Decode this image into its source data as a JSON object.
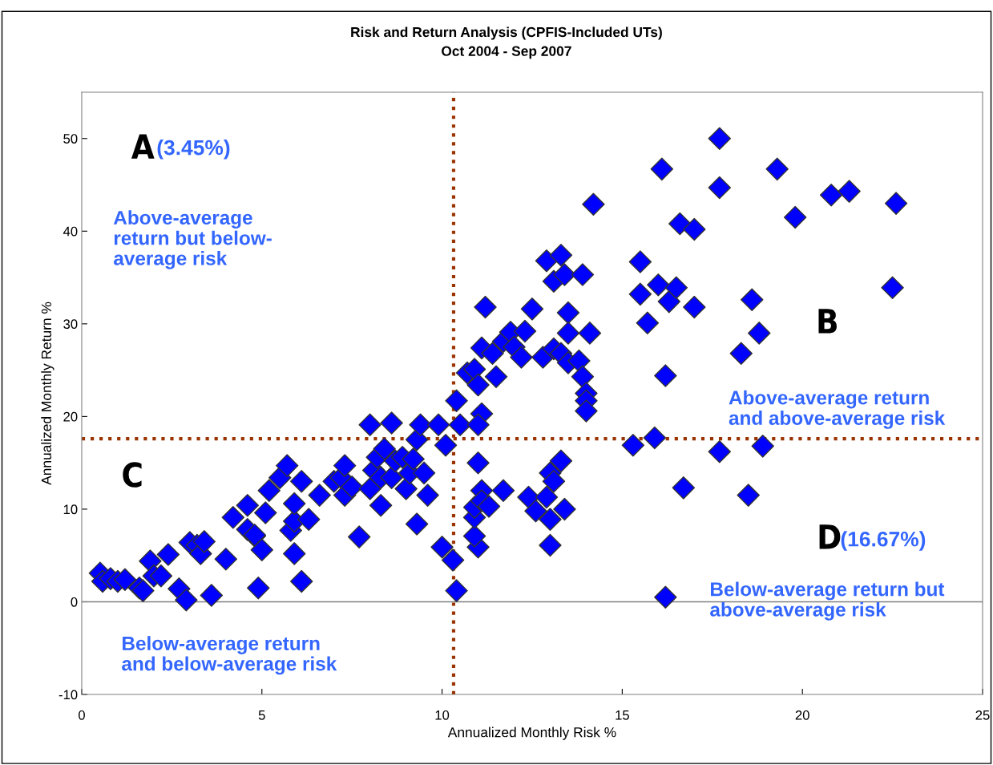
{
  "chart_data": {
    "type": "scatter",
    "title": "Risk and Return Analysis (CPFIS-Included UTs)\nOct 2004 - Sep 2007",
    "xlabel": "Annualized Monthly Risk %",
    "ylabel": "Annualized Monthly Return %",
    "xlim": [
      0,
      25
    ],
    "xticks": [
      0,
      5,
      10,
      15,
      20,
      25
    ],
    "ylim": [
      -10,
      55
    ],
    "yticks": [
      -10,
      0,
      10,
      20,
      30,
      40,
      50
    ],
    "grid": false,
    "marker": "diamond",
    "legend": false,
    "ref_lines": [
      {
        "axis": "x",
        "value": 10.32,
        "color": "#993300",
        "line_style": "dotted"
      },
      {
        "axis": "y",
        "value": 17.6,
        "color": "#993300",
        "line_style": "dotted"
      },
      {
        "axis": "y",
        "value": 0,
        "color": "#808080",
        "line_style": "solid"
      }
    ],
    "annotations": [
      "A",
      "(3.45%)",
      "Above-average\nreturn but below-\naverage risk",
      "B",
      "Above-average return\nand above-average risk",
      "C",
      "Below-average return\nand below-average risk",
      "D",
      "(16.67%)",
      "Below-average return but\nabove-average risk"
    ],
    "series": [
      {
        "color": "#0000ff",
        "x": [
          0.51,
          0.58,
          0.8,
          1.0,
          1.2,
          1.6,
          1.7,
          1.9,
          2.0,
          2.2,
          2.4,
          2.7,
          2.9,
          3.0,
          3.2,
          3.3,
          3.4,
          3.6,
          4.0,
          4.2,
          4.6,
          4.6,
          4.8,
          4.8,
          4.9,
          5.0,
          5.1,
          5.2,
          5.5,
          5.7,
          5.8,
          5.9,
          5.9,
          5.9,
          6.1,
          6.1,
          6.3,
          6.6,
          7.0,
          7.2,
          7.3,
          7.3,
          7.5,
          7.7,
          8.0,
          8.0,
          8.1,
          8.2,
          8.3,
          8.3,
          8.4,
          8.6,
          8.6,
          8.7,
          8.9,
          9.0,
          9.1,
          9.2,
          9.3,
          9.3,
          9.4,
          9.5,
          9.6,
          9.9,
          10.0,
          10.1,
          10.3,
          10.4,
          10.4,
          10.5,
          10.7,
          10.9,
          11.0,
          11.1,
          11.1,
          11.0,
          11.0,
          11.2,
          11.4,
          11.5,
          11.7,
          11.9,
          12.0,
          12.2,
          12.3,
          12.5,
          12.8,
          12.9,
          13.1,
          13.1,
          13.3,
          13.3,
          13.4,
          13.5,
          13.5,
          13.5,
          13.8,
          13.9,
          13.9,
          14.0,
          14.0,
          14.0,
          14.1,
          14.2,
          11.0,
          10.9,
          10.9,
          10.9,
          11.1,
          11.1,
          11.3,
          11.7,
          12.4,
          12.6,
          12.9,
          13.0,
          13.1,
          13.0,
          13.0,
          13.3,
          13.4,
          15.3,
          15.5,
          15.5,
          15.7,
          15.9,
          16.0,
          16.1,
          16.2,
          16.2,
          16.3,
          16.5,
          16.6,
          16.7,
          17.0,
          17.0,
          17.7,
          17.7,
          17.7,
          18.3,
          18.5,
          18.6,
          18.8,
          18.9,
          19.3,
          19.8,
          20.8,
          21.3,
          22.5,
          22.6
        ],
        "values": [
          3.1,
          2.2,
          2.5,
          2.2,
          2.4,
          1.5,
          1.2,
          4.4,
          2.8,
          2.8,
          5.1,
          1.4,
          0.2,
          6.4,
          6.1,
          5.2,
          6.5,
          0.7,
          4.6,
          9.1,
          10.4,
          7.8,
          7.1,
          7.2,
          1.5,
          5.6,
          9.6,
          12.0,
          13.4,
          14.7,
          7.7,
          8.7,
          5.2,
          10.6,
          13.0,
          2.2,
          8.9,
          11.5,
          13.0,
          13.4,
          14.7,
          11.5,
          12.4,
          7.0,
          19.1,
          12.2,
          14.2,
          15.6,
          10.4,
          13.4,
          16.5,
          13.4,
          19.3,
          15.2,
          15.6,
          12.2,
          13.9,
          15.4,
          17.5,
          8.4,
          19.1,
          13.9,
          11.5,
          19.1,
          5.9,
          16.9,
          4.5,
          1.2,
          21.7,
          19.1,
          24.7,
          25.1,
          23.4,
          27.4,
          20.3,
          19.1,
          15.0,
          31.8,
          26.8,
          24.3,
          28.1,
          29.1,
          27.5,
          26.4,
          29.2,
          31.6,
          26.4,
          36.8,
          34.6,
          27.3,
          37.4,
          26.8,
          35.3,
          25.8,
          31.2,
          29.0,
          26.0,
          35.3,
          24.3,
          22.5,
          21.7,
          20.6,
          29.0,
          42.9,
          5.9,
          7.1,
          9.1,
          10.2,
          12.0,
          10.9,
          10.3,
          12.0,
          11.3,
          9.8,
          11.3,
          13.9,
          13.0,
          8.9,
          6.1,
          15.2,
          10.0,
          16.9,
          36.7,
          33.2,
          30.1,
          17.7,
          34.2,
          46.7,
          24.4,
          0.5,
          32.4,
          33.9,
          40.8,
          12.3,
          31.8,
          40.2,
          50.0,
          44.7,
          16.2,
          26.8,
          11.5,
          32.6,
          29.0,
          16.8,
          46.7,
          41.5,
          43.9,
          44.3,
          33.9,
          43.0
        ]
      }
    ]
  }
}
